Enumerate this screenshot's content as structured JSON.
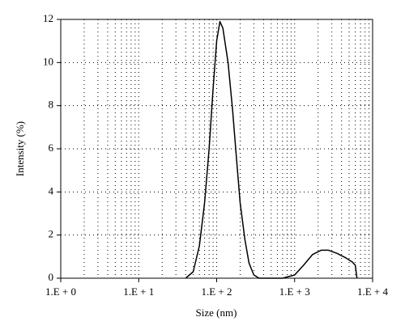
{
  "chart_data": {
    "type": "line",
    "x_label": "Size (nm)",
    "y_label": "Intensity (%)",
    "x_scale": "log",
    "grid": true,
    "minor_grid": true,
    "xlim": [
      1,
      10000
    ],
    "xticks": [
      {
        "value": 1,
        "label": "1.E + 0"
      },
      {
        "value": 10,
        "label": "1.E + 1"
      },
      {
        "value": 100,
        "label": "1.E + 2"
      },
      {
        "value": 1000,
        "label": "1.E + 3"
      },
      {
        "value": 10000,
        "label": "1.E + 4"
      }
    ],
    "ylim": [
      0,
      12
    ],
    "yticks": [
      0,
      2,
      4,
      6,
      8,
      10,
      12
    ],
    "series": [
      {
        "color": "#000000",
        "x": [
          40,
          50,
          60,
          70,
          80,
          90,
          100,
          110,
          120,
          140,
          160,
          180,
          200,
          230,
          260,
          300,
          350,
          700,
          1000,
          1300,
          1700,
          2200,
          2700,
          3500,
          4500,
          5500,
          6000,
          6300
        ],
        "values": [
          0,
          0.3,
          1.5,
          3.5,
          6,
          8.8,
          11,
          11.9,
          11.6,
          10,
          7.8,
          5.5,
          3.5,
          1.8,
          0.7,
          0.15,
          0,
          0,
          0.15,
          0.6,
          1.1,
          1.3,
          1.3,
          1.15,
          0.95,
          0.75,
          0.6,
          0
        ]
      }
    ]
  }
}
